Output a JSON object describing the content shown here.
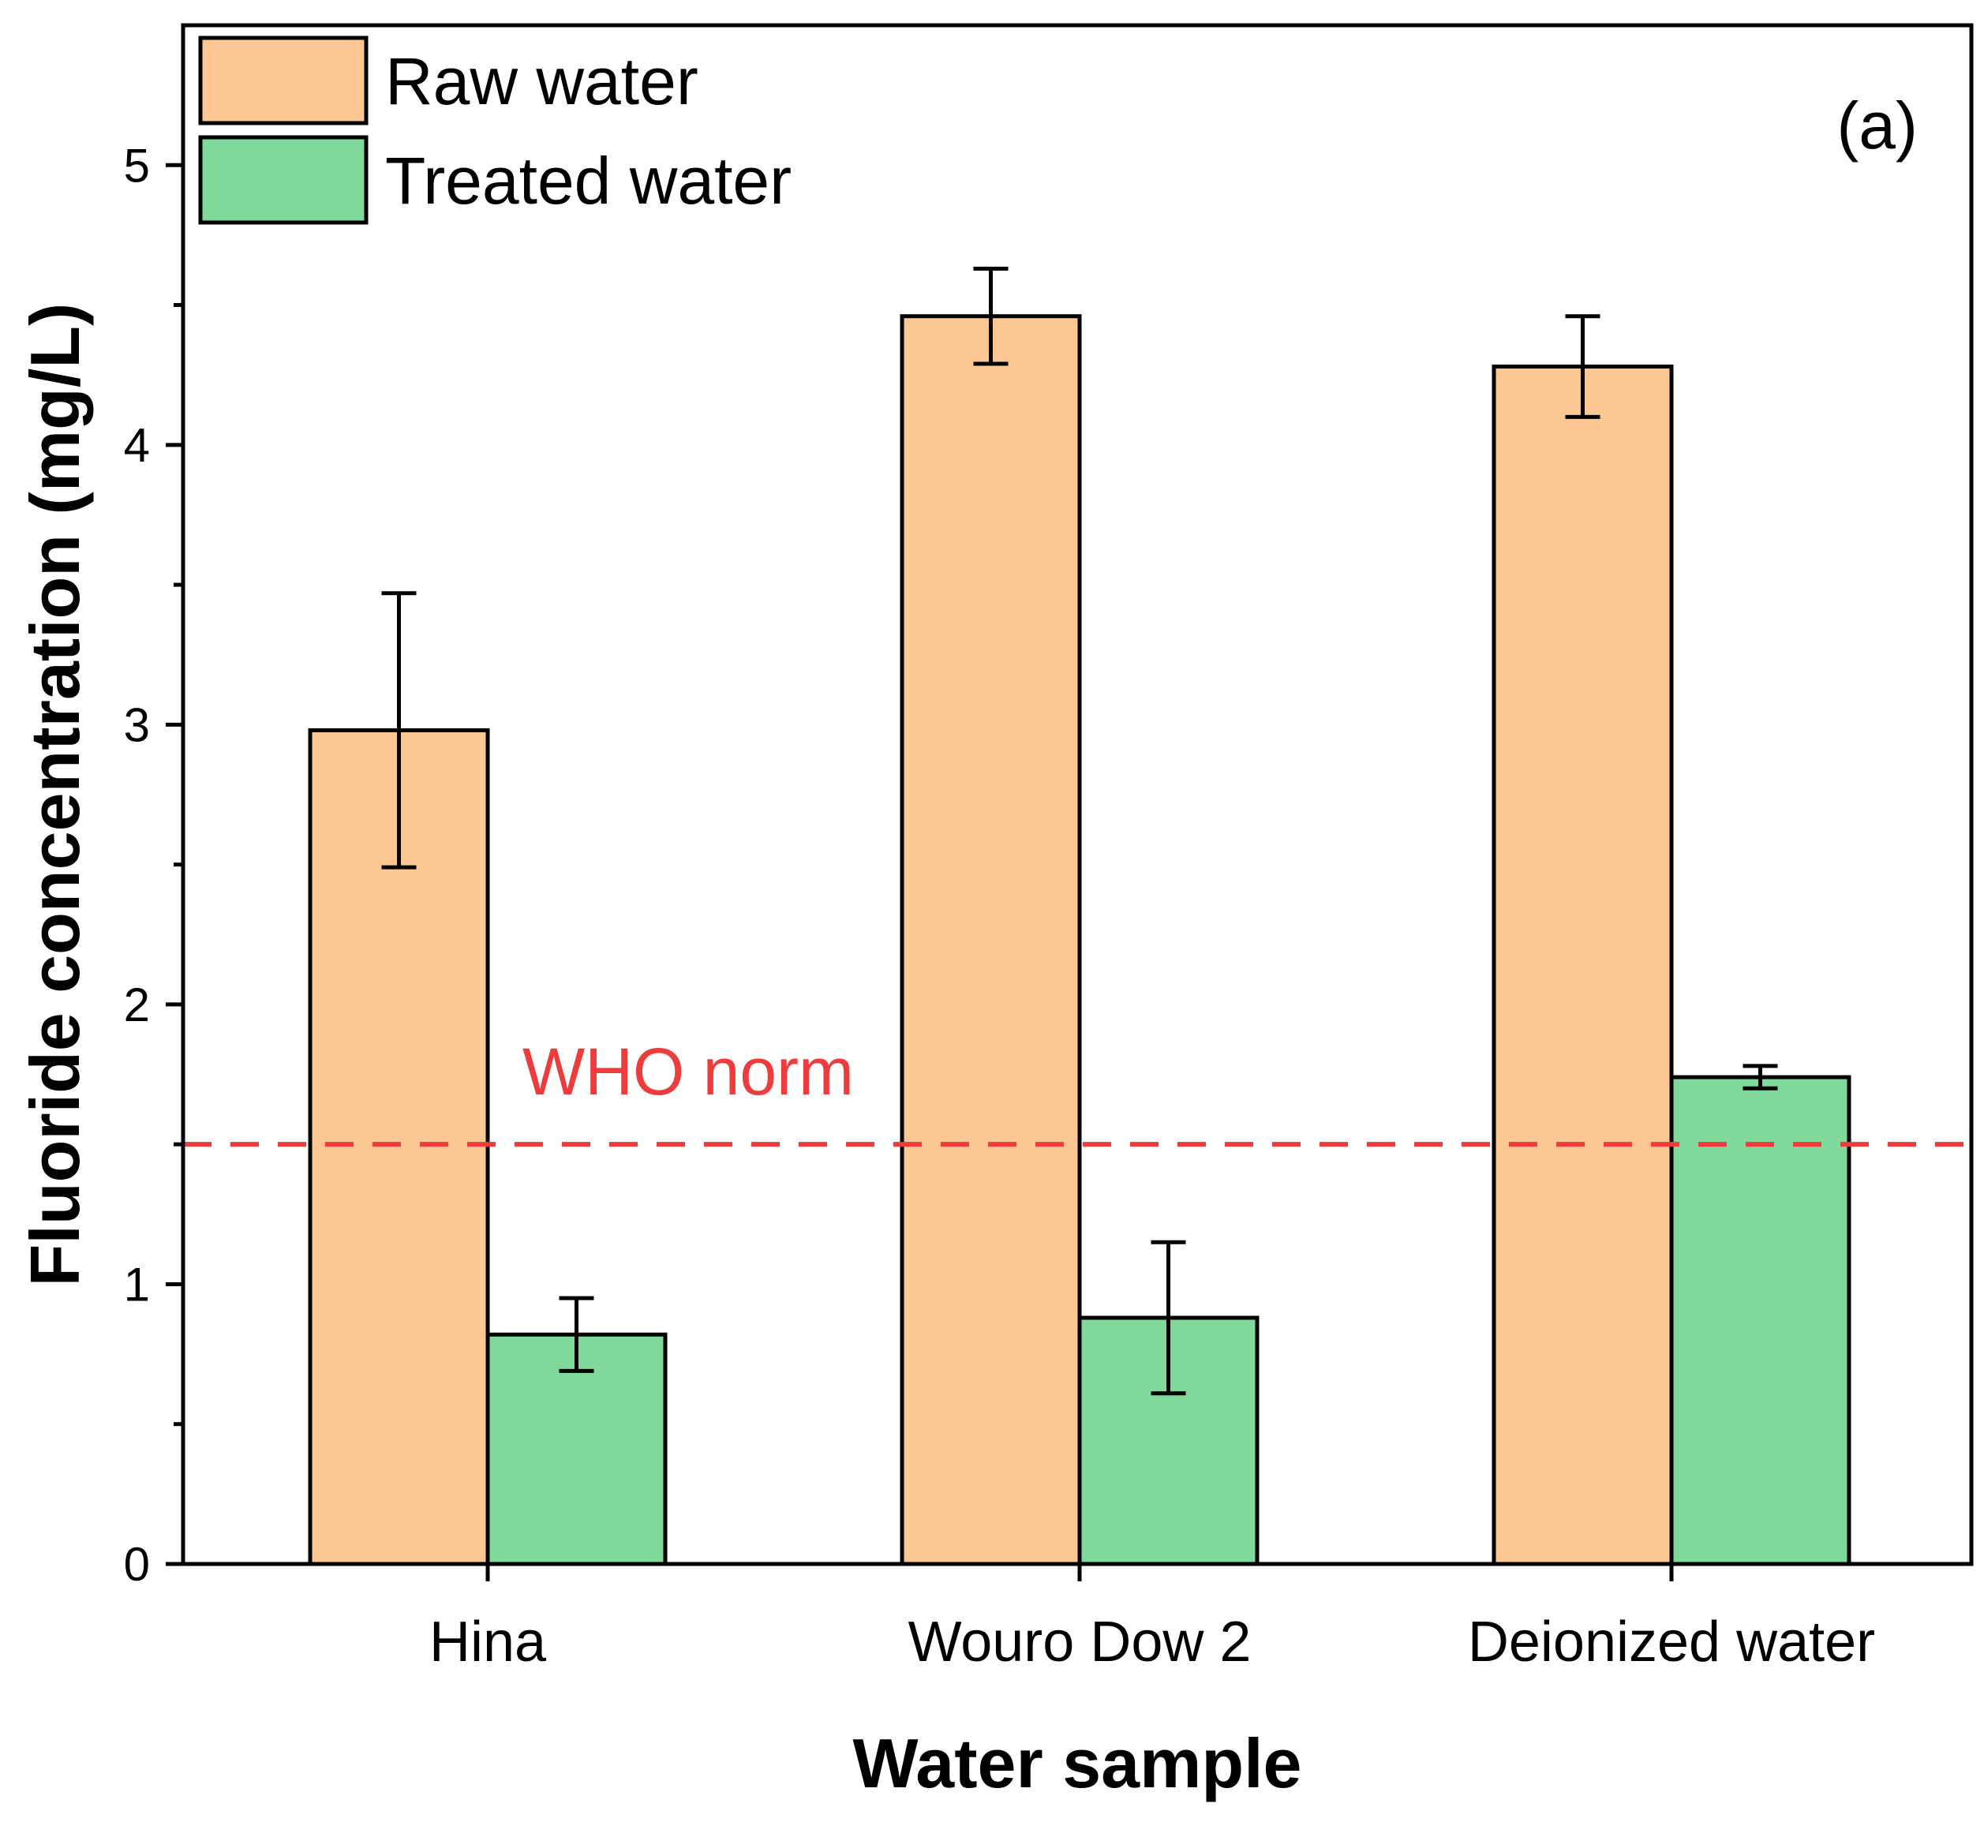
{
  "chart_data": {
    "type": "bar",
    "title": "",
    "panel_label": "(a)",
    "xlabel": "Water sample",
    "ylabel": "Fluoride concentration (mg/L)",
    "ylim": [
      0,
      5.5
    ],
    "yticks": [
      0,
      1,
      2,
      3,
      4,
      5
    ],
    "ytick_labels": [
      "0",
      "1",
      "2",
      "3",
      "4",
      "5"
    ],
    "categories": [
      "Hina",
      "Wouro Dow 2",
      "Deionized water"
    ],
    "series": [
      {
        "name": "Raw water",
        "color": "#FDC794",
        "values": [
          2.98,
          4.46,
          4.28
        ],
        "errors": [
          0.49,
          0.17,
          0.18
        ]
      },
      {
        "name": "Treated water",
        "color": "#80D99A",
        "values": [
          0.82,
          0.88,
          1.74
        ],
        "errors": [
          0.13,
          0.27,
          0.04
        ]
      }
    ],
    "reference_line": {
      "label": "WHO norm",
      "value": 1.5,
      "color": "#EE3B3B",
      "style": "dashed"
    },
    "legend": {
      "placement": "top-left"
    },
    "grid": false
  }
}
